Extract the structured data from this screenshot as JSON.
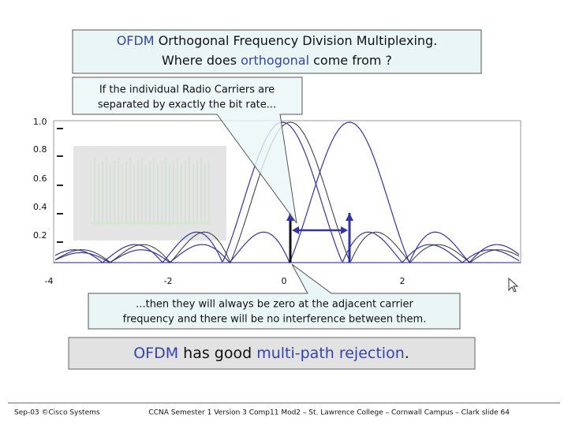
{
  "title": {
    "highlight": "OFDM",
    "line1": "Orthogonal Frequency Division Multiplexing.",
    "line2a": "Where does",
    "line2b": "orthogonal",
    "line2c": "come from ?"
  },
  "callout_top": {
    "line1": "If the individual Radio Carriers are",
    "line2": "separated by exactly the bit rate..."
  },
  "plot": {
    "yticks": [
      "1.0",
      "0.8",
      "0.6",
      "0.4",
      "0.2"
    ],
    "xticks": [
      "-4",
      "-2",
      "0",
      "2"
    ]
  },
  "callout_bottom": {
    "line1": "...then they will always be zero at the adjacent carrier",
    "line2": "frequency and there will be no interference between them."
  },
  "summary": {
    "a": "OFDM",
    "b": "has good",
    "c": "multi-path rejection",
    "d": "."
  },
  "footer": {
    "left": "Sep-03 ©Cisco Systems",
    "right": "CCNA Semester 1 Version 3 Comp11 Mod2 – St. Lawrence College – Cornwall Campus – Clark slide  64"
  }
}
